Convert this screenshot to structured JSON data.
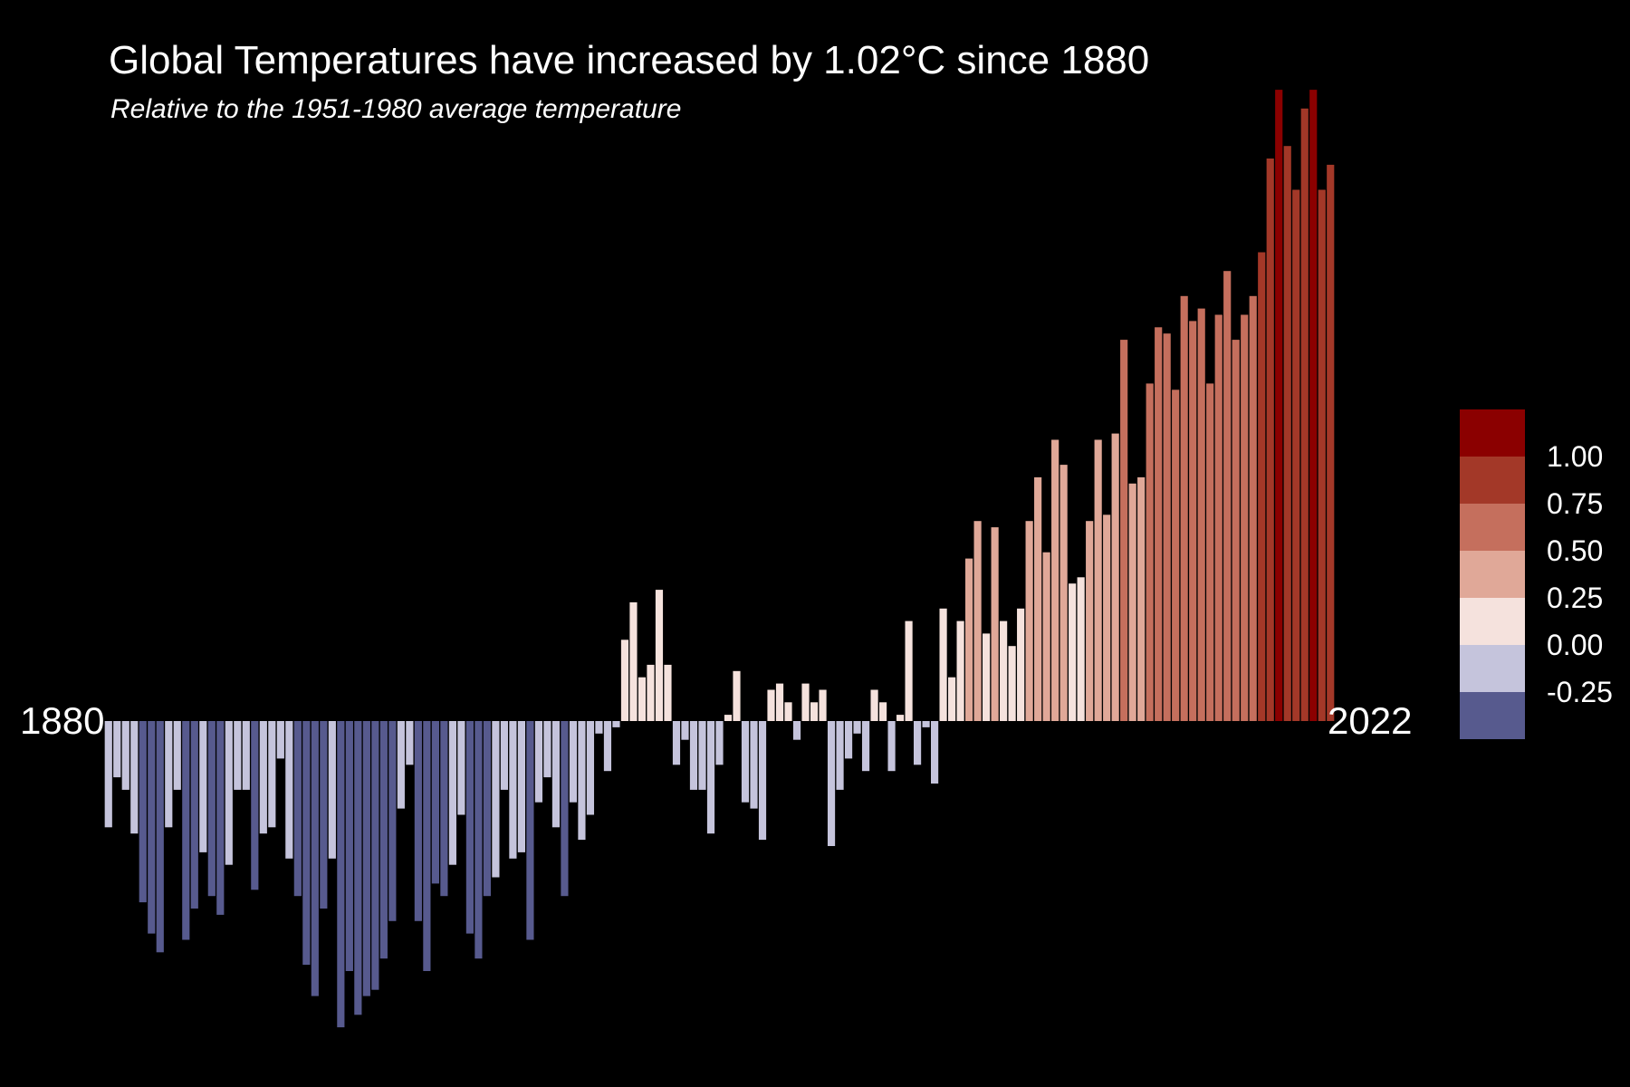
{
  "chart_data": {
    "type": "bar",
    "title": "Global Temperatures have increased by 1.02°C since 1880",
    "subtitle": "Relative to the 1951-1980 average temperature",
    "xlabel": "",
    "ylabel": "",
    "x_start_label": "1880",
    "x_end_label": "2022",
    "years": [
      1880,
      1881,
      1882,
      1883,
      1884,
      1885,
      1886,
      1887,
      1888,
      1889,
      1890,
      1891,
      1892,
      1893,
      1894,
      1895,
      1896,
      1897,
      1898,
      1899,
      1900,
      1901,
      1902,
      1903,
      1904,
      1905,
      1906,
      1907,
      1908,
      1909,
      1910,
      1911,
      1912,
      1913,
      1914,
      1915,
      1916,
      1917,
      1918,
      1919,
      1920,
      1921,
      1922,
      1923,
      1924,
      1925,
      1926,
      1927,
      1928,
      1929,
      1930,
      1931,
      1932,
      1933,
      1934,
      1935,
      1936,
      1937,
      1938,
      1939,
      1940,
      1941,
      1942,
      1943,
      1944,
      1945,
      1946,
      1947,
      1948,
      1949,
      1950,
      1951,
      1952,
      1953,
      1954,
      1955,
      1956,
      1957,
      1958,
      1959,
      1960,
      1961,
      1962,
      1963,
      1964,
      1965,
      1966,
      1967,
      1968,
      1969,
      1970,
      1971,
      1972,
      1973,
      1974,
      1975,
      1976,
      1977,
      1978,
      1979,
      1980,
      1981,
      1982,
      1983,
      1984,
      1985,
      1986,
      1987,
      1988,
      1989,
      1990,
      1991,
      1992,
      1993,
      1994,
      1995,
      1996,
      1997,
      1998,
      1999,
      2000,
      2001,
      2002,
      2003,
      2004,
      2005,
      2006,
      2007,
      2008,
      2009,
      2010,
      2011,
      2012,
      2013,
      2014,
      2015,
      2016,
      2017,
      2018,
      2019,
      2020,
      2021,
      2022
    ],
    "values": [
      -0.17,
      -0.09,
      -0.11,
      -0.18,
      -0.29,
      -0.34,
      -0.37,
      -0.17,
      -0.11,
      -0.35,
      -0.3,
      -0.21,
      -0.28,
      -0.31,
      -0.23,
      -0.11,
      -0.11,
      -0.27,
      -0.18,
      -0.17,
      -0.06,
      -0.22,
      -0.28,
      -0.39,
      -0.44,
      -0.3,
      -0.22,
      -0.49,
      -0.4,
      -0.47,
      -0.44,
      -0.43,
      -0.38,
      -0.32,
      -0.14,
      -0.07,
      -0.32,
      -0.4,
      -0.26,
      -0.28,
      -0.23,
      -0.15,
      -0.34,
      -0.38,
      -0.28,
      -0.25,
      -0.11,
      -0.22,
      -0.21,
      -0.35,
      -0.13,
      -0.09,
      -0.17,
      -0.28,
      -0.13,
      -0.19,
      -0.15,
      -0.02,
      -0.08,
      -0.01,
      0.13,
      0.19,
      0.07,
      0.09,
      0.21,
      0.09,
      -0.07,
      -0.03,
      -0.11,
      -0.11,
      -0.18,
      -0.07,
      0.01,
      0.08,
      -0.13,
      -0.14,
      -0.19,
      0.05,
      0.06,
      0.03,
      -0.03,
      0.06,
      0.03,
      0.05,
      -0.2,
      -0.11,
      -0.06,
      -0.02,
      -0.08,
      0.05,
      0.03,
      -0.08,
      0.01,
      0.16,
      -0.07,
      -0.01,
      -0.1,
      0.18,
      0.07,
      0.16,
      0.26,
      0.32,
      0.14,
      0.31,
      0.16,
      0.12,
      0.18,
      0.32,
      0.39,
      0.27,
      0.45,
      0.41,
      0.22,
      0.23,
      0.32,
      0.45,
      0.33,
      0.46,
      0.61,
      0.38,
      0.39,
      0.54,
      0.63,
      0.62,
      0.53,
      0.68,
      0.64,
      0.66,
      0.54,
      0.65,
      0.72,
      0.61,
      0.65,
      0.68,
      0.75,
      0.9,
      1.01,
      0.92,
      0.85,
      0.98,
      1.01,
      0.85,
      0.89
    ],
    "y_range": [
      -0.5,
      1.02
    ],
    "color_scale_breaks": [
      1.0,
      0.75,
      0.5,
      0.25,
      0.0,
      -0.25
    ],
    "color_scale_labels": [
      "1.00",
      "0.75",
      "0.50",
      "0.25",
      "0.00",
      "-0.25"
    ],
    "color_bins": [
      {
        "min": 1.0,
        "color": "#8B0000"
      },
      {
        "min": 0.75,
        "color": "#A33828"
      },
      {
        "min": 0.5,
        "color": "#C56F5D"
      },
      {
        "min": 0.25,
        "color": "#E0A898"
      },
      {
        "min": 0.0,
        "color": "#F5E2DD"
      },
      {
        "min": -0.25,
        "color": "#C5C4DC"
      },
      {
        "min": -99,
        "color": "#575A8E"
      }
    ],
    "legend_keys": [
      "#8B0000",
      "#A33828",
      "#C56F5D",
      "#E0A898",
      "#F5E2DD",
      "#C5C4DC",
      "#575A8E"
    ],
    "legend_position": "right",
    "grid": false,
    "background": "#000000"
  }
}
